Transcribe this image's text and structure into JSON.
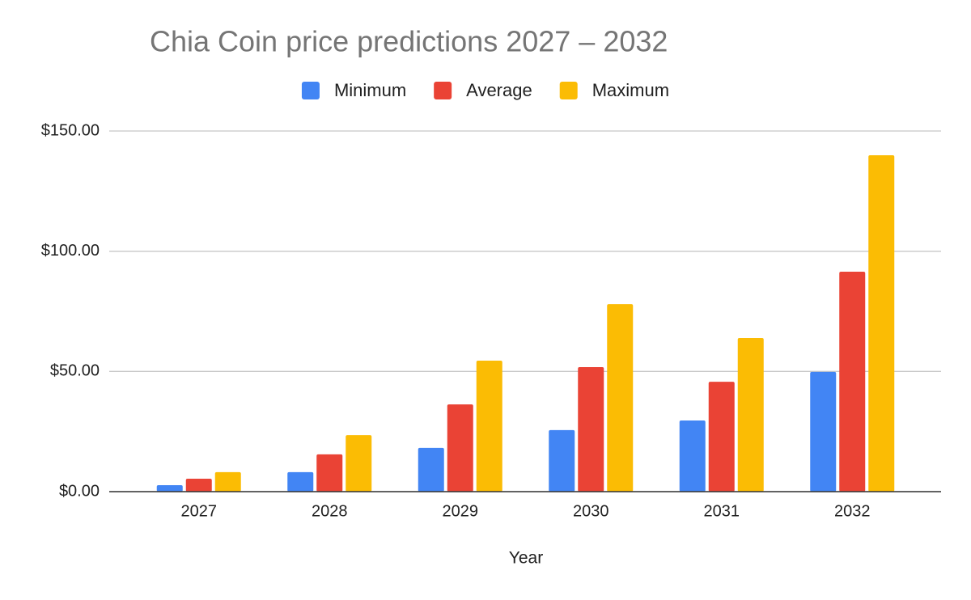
{
  "chart_data": {
    "type": "bar",
    "title": "Chia Coin price predictions 2027 – 2032",
    "x_label": "Year",
    "categories": [
      "2027",
      "2028",
      "2029",
      "2030",
      "2031",
      "2032"
    ],
    "series": [
      {
        "name": "Minimum",
        "color": "#4285f4",
        "values": [
          2.7,
          8.1,
          18.2,
          25.6,
          29.6,
          49.8
        ]
      },
      {
        "name": "Average",
        "color": "#ea4335",
        "values": [
          5.4,
          15.5,
          36.3,
          51.8,
          45.7,
          91.5
        ]
      },
      {
        "name": "Maximum",
        "color": "#fbbc04",
        "values": [
          8.1,
          23.5,
          54.5,
          78.0,
          63.9,
          139.9
        ]
      }
    ],
    "ylim": [
      0,
      150
    ],
    "yticks": [
      {
        "value": 0,
        "label": "$0.00"
      },
      {
        "value": 50,
        "label": "$50.00"
      },
      {
        "value": 100,
        "label": "$100.00"
      },
      {
        "value": 150,
        "label": "$150.00"
      }
    ],
    "grid": true,
    "legend": "top"
  }
}
